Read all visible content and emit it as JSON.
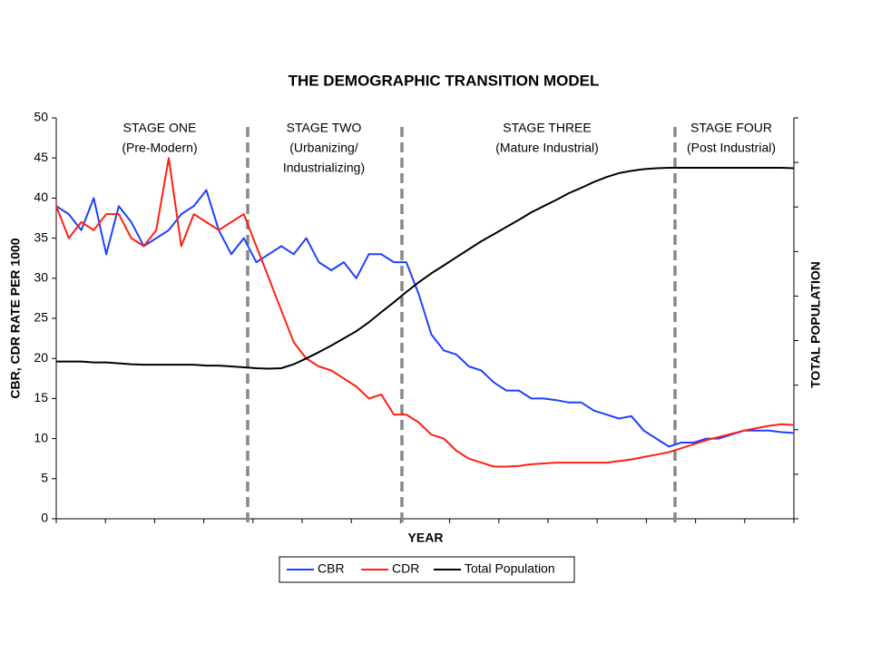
{
  "chart_data": {
    "type": "line",
    "title": "THE DEMOGRAPHIC TRANSITION MODEL",
    "x_label": "YEAR",
    "y_label": "CBR, CDR RATE PER 1000",
    "y2_label": "TOTAL POPULATION",
    "stages": [
      [
        "STAGE ONE",
        "(Pre-Modern)"
      ],
      [
        "STAGE TWO",
        "(Urbanizing/",
        "Industrializing)"
      ],
      [
        "STAGE THREE",
        "(Mature Industrial)"
      ],
      [
        "STAGE FOUR",
        "(Post Industrial)"
      ]
    ],
    "categories": [
      null,
      null,
      null,
      null,
      null,
      null,
      null,
      null,
      null,
      null,
      null,
      null,
      null,
      null,
      null,
      null,
      null,
      null,
      null,
      null,
      null,
      null,
      null,
      null,
      null,
      null,
      null,
      null,
      null,
      null,
      null,
      null,
      null,
      null,
      null,
      null,
      null,
      null,
      null,
      null,
      null,
      null,
      null,
      null,
      null,
      null,
      null,
      null,
      null,
      null,
      null,
      null,
      null,
      null,
      null,
      null,
      null,
      null,
      null,
      null
    ],
    "ylim": [
      0,
      50
    ],
    "yticks": [
      0,
      5,
      10,
      15,
      20,
      25,
      30,
      35,
      40,
      45,
      50
    ],
    "y2lim": [
      0,
      9
    ],
    "y2ticks": [
      0,
      1,
      2,
      3,
      4,
      5,
      6,
      7,
      8,
      9
    ],
    "legend": "bottom",
    "series": [
      {
        "name": "CBR",
        "color": "#1f3fff",
        "values": [
          39,
          38,
          36,
          40,
          33,
          39,
          37,
          34,
          35,
          36,
          38,
          39,
          41,
          36,
          33,
          35,
          32,
          33,
          34,
          33,
          35,
          32,
          31,
          32,
          30,
          33,
          33,
          32,
          32,
          28,
          23,
          21,
          20.5,
          19,
          18.5,
          17,
          16,
          16,
          15,
          15,
          14.8,
          14.5,
          14.5,
          13.5,
          13,
          12.5,
          12.8,
          11,
          10,
          9,
          9.5,
          9.5,
          10,
          10,
          10.5,
          11,
          11,
          11,
          10.8,
          10.7
        ]
      },
      {
        "name": "CDR",
        "color": "#ff2010",
        "values": [
          39,
          35,
          37,
          36,
          38,
          38,
          35,
          34,
          36,
          45,
          34,
          38,
          37,
          36,
          37,
          38,
          34,
          30,
          26,
          22,
          20,
          19,
          18.5,
          17.5,
          16.5,
          15,
          15.5,
          13,
          13,
          12,
          10.5,
          10,
          8.5,
          7.5,
          7,
          6.5,
          6.5,
          6.6,
          6.8,
          6.9,
          7,
          7,
          7,
          7,
          7,
          7.2,
          7.4,
          7.7,
          8,
          8.3,
          8.8,
          9.3,
          9.8,
          10.2,
          10.6,
          11,
          11.3,
          11.6,
          11.8,
          11.7
        ]
      },
      {
        "name": "Total Population",
        "color": "#000000",
        "axis": "y2",
        "values": [
          3.53,
          3.53,
          3.53,
          3.51,
          3.51,
          3.49,
          3.47,
          3.46,
          3.46,
          3.46,
          3.46,
          3.46,
          3.44,
          3.44,
          3.42,
          3.4,
          3.38,
          3.37,
          3.38,
          3.47,
          3.6,
          3.74,
          3.89,
          4.05,
          4.21,
          4.41,
          4.64,
          4.86,
          5.09,
          5.31,
          5.51,
          5.69,
          5.87,
          6.05,
          6.23,
          6.39,
          6.55,
          6.71,
          6.88,
          7.02,
          7.16,
          7.31,
          7.43,
          7.56,
          7.67,
          7.76,
          7.81,
          7.85,
          7.87,
          7.88,
          7.88,
          7.88,
          7.88,
          7.88,
          7.88,
          7.88,
          7.88,
          7.88,
          7.88,
          7.87
        ]
      }
    ]
  }
}
